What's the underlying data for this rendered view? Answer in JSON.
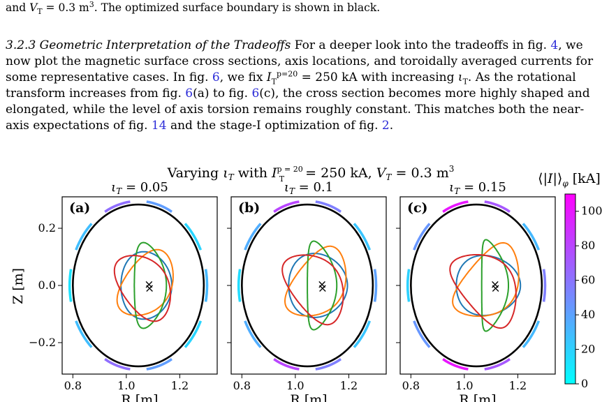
{
  "caption": {
    "pre": "and ",
    "var": "V",
    "var_sub": "T",
    "val": " = 0.3 m",
    "sup": "3",
    "rest": ". The optimized surface boundary is shown in black."
  },
  "section": {
    "heading": "3.2.3  Geometric Interpretation of the Tradeoffs",
    "s1": "  For a deeper look into the tradeoffs in fig. ",
    "r1": "4",
    "s2": ", we now plot the magnetic surface cross sections, axis locations, and toroidally averaged currents for some representative cases. In fig. ",
    "r2": "6",
    "s3": ", we fix ",
    "i_sym": "I",
    "i_sub": "T",
    "i_sup": "p=20",
    "s4": " = 250 kA with increasing ",
    "iota": "ι",
    "iota_sub": "T",
    "s5": ". As the rotational transform increases from fig. ",
    "r3": "6",
    "s6": "(a) to fig. ",
    "r4": "6",
    "s7": "(c), the cross section becomes more highly shaped and elongated, while the level of axis torsion remains roughly constant. This matches both the near-axis expectations of fig. ",
    "r5": "14",
    "s8": " and the stage-I optimization of fig. ",
    "r6": "2",
    "s9": "."
  },
  "figure": {
    "suptitle_pre": "Varying ",
    "suptitle_iota": "ι",
    "suptitle_iota_sub": "T",
    "suptitle_mid": " with ",
    "suptitle_I": "I",
    "suptitle_I_sup": "p = 20",
    "suptitle_I_sub": "T",
    "suptitle_val1": " = 250 kA, ",
    "suptitle_V": "V",
    "suptitle_V_sub": "T",
    "suptitle_val2": " = 0.3 m",
    "suptitle_V_sup": "3",
    "ylabel": "Z [m]",
    "xlabel": "R [m]",
    "colorbar_label_open": "⟨|",
    "colorbar_label_I": "I",
    "colorbar_label_close": "|⟩",
    "colorbar_label_sub": "φ",
    "colorbar_label_unit": " [kA]",
    "colorbar_ticks": [
      "0",
      "20",
      "40",
      "60",
      "80",
      "100"
    ],
    "colorbar_tick_values": [
      0,
      20,
      40,
      60,
      80,
      100
    ],
    "colorbar_range": [
      0,
      110
    ],
    "colorbar_colors": [
      "#00ffff",
      "#ff00ff"
    ],
    "boundary_color": "#000000",
    "series_colors": [
      "#1f77b4",
      "#ff7f0e",
      "#2ca02c",
      "#d62728"
    ]
  },
  "chart_data": [
    {
      "type": "line",
      "panel": "(a)",
      "title_sym": "ι",
      "title_sub": "T",
      "title_val": " = 0.05",
      "iota_T": 0.05,
      "x_ticks": [
        "0.8",
        "1.0",
        "1.2"
      ],
      "x_tick_values": [
        0.8,
        1.0,
        1.2
      ],
      "y_ticks": [
        "0.2",
        "0.0",
        "−0.2"
      ],
      "y_tick_values": [
        0.2,
        0.0,
        -0.2
      ],
      "xlim": [
        0.76,
        1.34
      ],
      "ylim": [
        -0.31,
        0.31
      ],
      "boundary": {
        "R0": 1.045,
        "a": 0.245,
        "b": 0.283
      },
      "axis_points": [
        [
          1.085,
          0.005
        ],
        [
          1.087,
          -0.008
        ]
      ],
      "cross_sections": [
        {
          "color": "#1f77b4",
          "Rc": 1.075,
          "a": 0.095,
          "b": 0.118,
          "rot": 0,
          "shift": 0.55,
          "tri": 0.0
        },
        {
          "color": "#ff7f0e",
          "Rc": 1.08,
          "a": 0.085,
          "b": 0.13,
          "rot": -38,
          "shift": 0.0,
          "tri": 0.25
        },
        {
          "color": "#2ca02c",
          "Rc": 1.09,
          "a": 0.06,
          "b": 0.15,
          "rot": 0,
          "shift": 0.0,
          "tri": 0.45
        },
        {
          "color": "#d62728",
          "Rc": 1.07,
          "a": 0.085,
          "b": 0.13,
          "rot": 38,
          "shift": 0.0,
          "tri": 0.25
        }
      ],
      "coil_currents": [
        30,
        18,
        42,
        62,
        28,
        12,
        28,
        62,
        42,
        18
      ]
    },
    {
      "type": "line",
      "panel": "(b)",
      "title_sym": "ι",
      "title_sub": "T",
      "title_val": " = 0.1",
      "iota_T": 0.1,
      "x_ticks": [
        "0.8",
        "1.0",
        "1.2"
      ],
      "x_tick_values": [
        0.8,
        1.0,
        1.2
      ],
      "y_ticks": [
        "0.2",
        "0.0",
        "−0.2"
      ],
      "y_tick_values": [
        0.2,
        0.0,
        -0.2
      ],
      "xlim": [
        0.76,
        1.34
      ],
      "ylim": [
        -0.31,
        0.31
      ],
      "boundary": {
        "R0": 1.045,
        "a": 0.245,
        "b": 0.283
      },
      "axis_points": [
        [
          1.1,
          0.005
        ],
        [
          1.102,
          -0.008
        ]
      ],
      "cross_sections": [
        {
          "color": "#1f77b4",
          "Rc": 1.085,
          "a": 0.11,
          "b": 0.112,
          "rot": 0,
          "shift": 0.7,
          "tri": 0.0
        },
        {
          "color": "#ff7f0e",
          "Rc": 1.09,
          "a": 0.09,
          "b": 0.14,
          "rot": -40,
          "shift": 0.0,
          "tri": 0.35
        },
        {
          "color": "#2ca02c",
          "Rc": 1.1,
          "a": 0.055,
          "b": 0.155,
          "rot": 0,
          "shift": 0.0,
          "tri": 0.6
        },
        {
          "color": "#d62728",
          "Rc": 1.08,
          "a": 0.09,
          "b": 0.14,
          "rot": 40,
          "shift": 0.0,
          "tri": 0.35
        }
      ],
      "coil_currents": [
        40,
        25,
        55,
        80,
        35,
        15,
        35,
        80,
        55,
        25
      ]
    },
    {
      "type": "line",
      "panel": "(c)",
      "title_sym": "ι",
      "title_sub": "T",
      "title_val": " = 0.15",
      "iota_T": 0.15,
      "x_ticks": [
        "0.8",
        "1.0",
        "1.2"
      ],
      "x_tick_values": [
        0.8,
        1.0,
        1.2
      ],
      "y_ticks": [
        "0.2",
        "0.0",
        "−0.2"
      ],
      "y_tick_values": [
        0.2,
        0.0,
        -0.2
      ],
      "xlim": [
        0.76,
        1.34
      ],
      "ylim": [
        -0.31,
        0.31
      ],
      "boundary": {
        "R0": 1.045,
        "a": 0.245,
        "b": 0.283
      },
      "axis_points": [
        [
          1.115,
          0.005
        ],
        [
          1.117,
          -0.008
        ]
      ],
      "cross_sections": [
        {
          "color": "#1f77b4",
          "Rc": 1.09,
          "a": 0.12,
          "b": 0.105,
          "rot": 0,
          "shift": 0.85,
          "tri": 0.0
        },
        {
          "color": "#ff7f0e",
          "Rc": 1.1,
          "a": 0.095,
          "b": 0.15,
          "rot": -42,
          "shift": 0.0,
          "tri": 0.45
        },
        {
          "color": "#2ca02c",
          "Rc": 1.115,
          "a": 0.05,
          "b": 0.16,
          "rot": 0,
          "shift": 0.0,
          "tri": 0.75
        },
        {
          "color": "#d62728",
          "Rc": 1.09,
          "a": 0.095,
          "b": 0.15,
          "rot": 42,
          "shift": 0.0,
          "tri": 0.45
        }
      ],
      "coil_currents": [
        55,
        30,
        72,
        100,
        45,
        20,
        45,
        100,
        72,
        30
      ]
    }
  ]
}
